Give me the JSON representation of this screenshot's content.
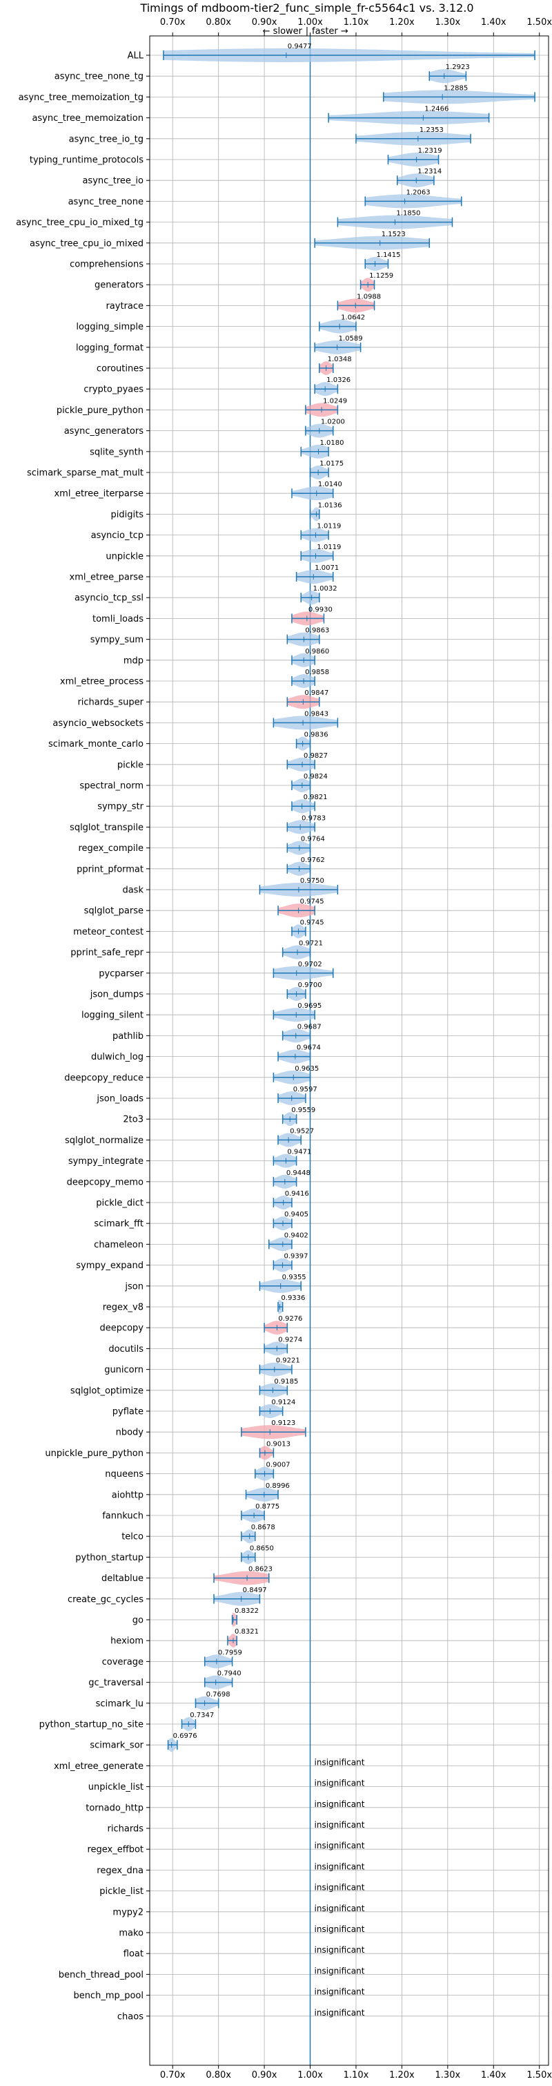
{
  "chart_data": {
    "type": "violin",
    "title": "Timings of mdboom-tier2_func_simple_fr-c5564c1 vs. 3.12.0",
    "subtitle_left": "← slower",
    "subtitle_sep": "|",
    "subtitle_right": "faster →",
    "xlim": [
      0.65,
      1.52
    ],
    "xticks": [
      0.7,
      0.8,
      0.9,
      1.0,
      1.1,
      1.2,
      1.3,
      1.4,
      1.5
    ],
    "xtick_labels": [
      "0.70x",
      "0.80x",
      "0.90x",
      "1.00x",
      "1.10x",
      "1.20x",
      "1.30x",
      "1.40x",
      "1.50x"
    ],
    "reference_x": 1.0,
    "grid": true,
    "insignificant_label": "insignificant",
    "colors": {
      "normal": "#a8c8e8",
      "highlight": "#f4a6ae",
      "line": "#1f77b4"
    },
    "rows": [
      {
        "name": "ALL",
        "value": 0.9477,
        "label": "0.9477",
        "lo": 0.68,
        "hi": 1.49,
        "spread": 0.12,
        "highlight": false
      },
      {
        "name": "async_tree_none_tg",
        "value": 1.2923,
        "label": "1.2923",
        "lo": 1.26,
        "hi": 1.34,
        "spread": 0.05,
        "highlight": false
      },
      {
        "name": "async_tree_memoization_tg",
        "value": 1.2885,
        "label": "1.2885",
        "lo": 1.16,
        "hi": 1.49,
        "spread": 0.14,
        "highlight": false
      },
      {
        "name": "async_tree_memoization",
        "value": 1.2466,
        "label": "1.2466",
        "lo": 1.04,
        "hi": 1.39,
        "spread": 0.14,
        "highlight": false
      },
      {
        "name": "async_tree_io_tg",
        "value": 1.2353,
        "label": "1.2353",
        "lo": 1.1,
        "hi": 1.35,
        "spread": 0.11,
        "highlight": false
      },
      {
        "name": "typing_runtime_protocols",
        "value": 1.2319,
        "label": "1.2319",
        "lo": 1.17,
        "hi": 1.28,
        "spread": 0.05,
        "highlight": false
      },
      {
        "name": "async_tree_io",
        "value": 1.2314,
        "label": "1.2314",
        "lo": 1.19,
        "hi": 1.27,
        "spread": 0.04,
        "highlight": false
      },
      {
        "name": "async_tree_none",
        "value": 1.2063,
        "label": "1.2063",
        "lo": 1.12,
        "hi": 1.33,
        "spread": 0.09,
        "highlight": false
      },
      {
        "name": "async_tree_cpu_io_mixed_tg",
        "value": 1.185,
        "label": "1.1850",
        "lo": 1.06,
        "hi": 1.31,
        "spread": 0.11,
        "highlight": false
      },
      {
        "name": "async_tree_cpu_io_mixed",
        "value": 1.1523,
        "label": "1.1523",
        "lo": 1.01,
        "hi": 1.26,
        "spread": 0.11,
        "highlight": false
      },
      {
        "name": "comprehensions",
        "value": 1.1415,
        "label": "1.1415",
        "lo": 1.12,
        "hi": 1.17,
        "spread": 0.025,
        "highlight": false
      },
      {
        "name": "generators",
        "value": 1.1259,
        "label": "1.1259",
        "lo": 1.11,
        "hi": 1.14,
        "spread": 0.015,
        "highlight": true
      },
      {
        "name": "raytrace",
        "value": 1.0988,
        "label": "1.0988",
        "lo": 1.06,
        "hi": 1.14,
        "spread": 0.03,
        "highlight": true
      },
      {
        "name": "logging_simple",
        "value": 1.0642,
        "label": "1.0642",
        "lo": 1.02,
        "hi": 1.1,
        "spread": 0.03,
        "highlight": false
      },
      {
        "name": "logging_format",
        "value": 1.0589,
        "label": "1.0589",
        "lo": 1.01,
        "hi": 1.11,
        "spread": 0.03,
        "highlight": false
      },
      {
        "name": "coroutines",
        "value": 1.0348,
        "label": "1.0348",
        "lo": 1.02,
        "hi": 1.05,
        "spread": 0.012,
        "highlight": true
      },
      {
        "name": "crypto_pyaes",
        "value": 1.0326,
        "label": "1.0326",
        "lo": 1.01,
        "hi": 1.06,
        "spread": 0.02,
        "highlight": false
      },
      {
        "name": "pickle_pure_python",
        "value": 1.0249,
        "label": "1.0249",
        "lo": 0.99,
        "hi": 1.06,
        "spread": 0.025,
        "highlight": true
      },
      {
        "name": "async_generators",
        "value": 1.02,
        "label": "1.0200",
        "lo": 0.99,
        "hi": 1.05,
        "spread": 0.02,
        "highlight": false
      },
      {
        "name": "sqlite_synth",
        "value": 1.018,
        "label": "1.0180",
        "lo": 0.98,
        "hi": 1.04,
        "spread": 0.015,
        "highlight": false
      },
      {
        "name": "scimark_sparse_mat_mult",
        "value": 1.0175,
        "label": "1.0175",
        "lo": 1.0,
        "hi": 1.04,
        "spread": 0.015,
        "highlight": false
      },
      {
        "name": "xml_etree_iterparse",
        "value": 1.014,
        "label": "1.0140",
        "lo": 0.96,
        "hi": 1.05,
        "spread": 0.02,
        "highlight": false
      },
      {
        "name": "pidigits",
        "value": 1.0136,
        "label": "1.0136",
        "lo": 1.0,
        "hi": 1.02,
        "spread": 0.006,
        "highlight": false
      },
      {
        "name": "asyncio_tcp",
        "value": 1.0119,
        "label": "1.0119",
        "lo": 0.98,
        "hi": 1.04,
        "spread": 0.02,
        "highlight": false
      },
      {
        "name": "unpickle",
        "value": 1.0119,
        "label": "1.0119",
        "lo": 0.98,
        "hi": 1.05,
        "spread": 0.02,
        "highlight": false
      },
      {
        "name": "xml_etree_parse",
        "value": 1.0071,
        "label": "1.0071",
        "lo": 0.97,
        "hi": 1.05,
        "spread": 0.02,
        "highlight": false
      },
      {
        "name": "asyncio_tcp_ssl",
        "value": 1.0032,
        "label": "1.0032",
        "lo": 0.98,
        "hi": 1.02,
        "spread": 0.012,
        "highlight": false
      },
      {
        "name": "tomli_loads",
        "value": 0.993,
        "label": "0.9930",
        "lo": 0.96,
        "hi": 1.03,
        "spread": 0.025,
        "highlight": true
      },
      {
        "name": "sympy_sum",
        "value": 0.9863,
        "label": "0.9863",
        "lo": 0.95,
        "hi": 1.02,
        "spread": 0.02,
        "highlight": false
      },
      {
        "name": "mdp",
        "value": 0.986,
        "label": "0.9860",
        "lo": 0.96,
        "hi": 1.01,
        "spread": 0.015,
        "highlight": false
      },
      {
        "name": "xml_etree_process",
        "value": 0.9858,
        "label": "0.9858",
        "lo": 0.96,
        "hi": 1.01,
        "spread": 0.015,
        "highlight": false
      },
      {
        "name": "richards_super",
        "value": 0.9847,
        "label": "0.9847",
        "lo": 0.95,
        "hi": 1.02,
        "spread": 0.025,
        "highlight": true
      },
      {
        "name": "asyncio_websockets",
        "value": 0.9843,
        "label": "0.9843",
        "lo": 0.92,
        "hi": 1.06,
        "spread": 0.03,
        "highlight": false
      },
      {
        "name": "scimark_monte_carlo",
        "value": 0.9836,
        "label": "0.9836",
        "lo": 0.97,
        "hi": 1.0,
        "spread": 0.01,
        "highlight": false
      },
      {
        "name": "pickle",
        "value": 0.9827,
        "label": "0.9827",
        "lo": 0.95,
        "hi": 1.01,
        "spread": 0.015,
        "highlight": false
      },
      {
        "name": "spectral_norm",
        "value": 0.9824,
        "label": "0.9824",
        "lo": 0.96,
        "hi": 1.0,
        "spread": 0.012,
        "highlight": false
      },
      {
        "name": "sympy_str",
        "value": 0.9821,
        "label": "0.9821",
        "lo": 0.96,
        "hi": 1.01,
        "spread": 0.015,
        "highlight": false
      },
      {
        "name": "sqlglot_transpile",
        "value": 0.9783,
        "label": "0.9783",
        "lo": 0.95,
        "hi": 1.01,
        "spread": 0.015,
        "highlight": false
      },
      {
        "name": "regex_compile",
        "value": 0.9764,
        "label": "0.9764",
        "lo": 0.95,
        "hi": 1.0,
        "spread": 0.015,
        "highlight": false
      },
      {
        "name": "pprint_pformat",
        "value": 0.9762,
        "label": "0.9762",
        "lo": 0.95,
        "hi": 1.0,
        "spread": 0.015,
        "highlight": false
      },
      {
        "name": "dask",
        "value": 0.975,
        "label": "0.9750",
        "lo": 0.89,
        "hi": 1.06,
        "spread": 0.04,
        "highlight": false
      },
      {
        "name": "sqlglot_parse",
        "value": 0.9745,
        "label": "0.9745",
        "lo": 0.93,
        "hi": 1.01,
        "spread": 0.03,
        "highlight": true
      },
      {
        "name": "meteor_contest",
        "value": 0.9745,
        "label": "0.9745",
        "lo": 0.96,
        "hi": 0.99,
        "spread": 0.01,
        "highlight": false
      },
      {
        "name": "pprint_safe_repr",
        "value": 0.9721,
        "label": "0.9721",
        "lo": 0.94,
        "hi": 1.0,
        "spread": 0.015,
        "highlight": false
      },
      {
        "name": "pycparser",
        "value": 0.9702,
        "label": "0.9702",
        "lo": 0.92,
        "hi": 1.05,
        "spread": 0.025,
        "highlight": false
      },
      {
        "name": "json_dumps",
        "value": 0.97,
        "label": "0.9700",
        "lo": 0.95,
        "hi": 0.99,
        "spread": 0.01,
        "highlight": false
      },
      {
        "name": "logging_silent",
        "value": 0.9695,
        "label": "0.9695",
        "lo": 0.92,
        "hi": 1.01,
        "spread": 0.02,
        "highlight": false
      },
      {
        "name": "pathlib",
        "value": 0.9687,
        "label": "0.9687",
        "lo": 0.94,
        "hi": 1.0,
        "spread": 0.02,
        "highlight": false
      },
      {
        "name": "dulwich_log",
        "value": 0.9674,
        "label": "0.9674",
        "lo": 0.93,
        "hi": 1.0,
        "spread": 0.02,
        "highlight": false
      },
      {
        "name": "deepcopy_reduce",
        "value": 0.9635,
        "label": "0.9635",
        "lo": 0.92,
        "hi": 1.0,
        "spread": 0.02,
        "highlight": false
      },
      {
        "name": "json_loads",
        "value": 0.9597,
        "label": "0.9597",
        "lo": 0.93,
        "hi": 0.99,
        "spread": 0.015,
        "highlight": false
      },
      {
        "name": "2to3",
        "value": 0.9559,
        "label": "0.9559",
        "lo": 0.94,
        "hi": 0.97,
        "spread": 0.008,
        "highlight": false
      },
      {
        "name": "sqlglot_normalize",
        "value": 0.9527,
        "label": "0.9527",
        "lo": 0.93,
        "hi": 0.98,
        "spread": 0.015,
        "highlight": false
      },
      {
        "name": "sympy_integrate",
        "value": 0.9471,
        "label": "0.9471",
        "lo": 0.92,
        "hi": 0.97,
        "spread": 0.015,
        "highlight": false
      },
      {
        "name": "deepcopy_memo",
        "value": 0.9448,
        "label": "0.9448",
        "lo": 0.92,
        "hi": 0.97,
        "spread": 0.015,
        "highlight": false
      },
      {
        "name": "pickle_dict",
        "value": 0.9416,
        "label": "0.9416",
        "lo": 0.92,
        "hi": 0.96,
        "spread": 0.012,
        "highlight": false
      },
      {
        "name": "scimark_fft",
        "value": 0.9405,
        "label": "0.9405",
        "lo": 0.92,
        "hi": 0.96,
        "spread": 0.012,
        "highlight": false
      },
      {
        "name": "chameleon",
        "value": 0.9402,
        "label": "0.9402",
        "lo": 0.91,
        "hi": 0.96,
        "spread": 0.012,
        "highlight": false
      },
      {
        "name": "sympy_expand",
        "value": 0.9397,
        "label": "0.9397",
        "lo": 0.92,
        "hi": 0.96,
        "spread": 0.012,
        "highlight": false
      },
      {
        "name": "json",
        "value": 0.9355,
        "label": "0.9355",
        "lo": 0.89,
        "hi": 0.98,
        "spread": 0.025,
        "highlight": false
      },
      {
        "name": "regex_v8",
        "value": 0.9336,
        "label": "0.9336",
        "lo": 0.93,
        "hi": 0.94,
        "spread": 0.006,
        "highlight": false
      },
      {
        "name": "deepcopy",
        "value": 0.9276,
        "label": "0.9276",
        "lo": 0.9,
        "hi": 0.95,
        "spread": 0.02,
        "highlight": true
      },
      {
        "name": "docutils",
        "value": 0.9274,
        "label": "0.9274",
        "lo": 0.9,
        "hi": 0.95,
        "spread": 0.015,
        "highlight": false
      },
      {
        "name": "gunicorn",
        "value": 0.9221,
        "label": "0.9221",
        "lo": 0.89,
        "hi": 0.96,
        "spread": 0.015,
        "highlight": false
      },
      {
        "name": "sqlglot_optimize",
        "value": 0.9185,
        "label": "0.9185",
        "lo": 0.89,
        "hi": 0.95,
        "spread": 0.015,
        "highlight": false
      },
      {
        "name": "pyflate",
        "value": 0.9124,
        "label": "0.9124",
        "lo": 0.89,
        "hi": 0.94,
        "spread": 0.012,
        "highlight": false
      },
      {
        "name": "nbody",
        "value": 0.9123,
        "label": "0.9123",
        "lo": 0.85,
        "hi": 0.99,
        "spread": 0.04,
        "highlight": true
      },
      {
        "name": "unpickle_pure_python",
        "value": 0.9013,
        "label": "0.9013",
        "lo": 0.89,
        "hi": 0.92,
        "spread": 0.01,
        "highlight": true
      },
      {
        "name": "nqueens",
        "value": 0.9007,
        "label": "0.9007",
        "lo": 0.88,
        "hi": 0.92,
        "spread": 0.012,
        "highlight": false
      },
      {
        "name": "aiohttp",
        "value": 0.8996,
        "label": "0.8996",
        "lo": 0.86,
        "hi": 0.93,
        "spread": 0.015,
        "highlight": false
      },
      {
        "name": "fannkuch",
        "value": 0.8775,
        "label": "0.8775",
        "lo": 0.85,
        "hi": 0.9,
        "spread": 0.015,
        "highlight": false
      },
      {
        "name": "telco",
        "value": 0.8678,
        "label": "0.8678",
        "lo": 0.85,
        "hi": 0.88,
        "spread": 0.01,
        "highlight": false
      },
      {
        "name": "python_startup",
        "value": 0.865,
        "label": "0.8650",
        "lo": 0.85,
        "hi": 0.88,
        "spread": 0.01,
        "highlight": false
      },
      {
        "name": "deltablue",
        "value": 0.8623,
        "label": "0.8623",
        "lo": 0.79,
        "hi": 0.91,
        "spread": 0.035,
        "highlight": true
      },
      {
        "name": "create_gc_cycles",
        "value": 0.8497,
        "label": "0.8497",
        "lo": 0.79,
        "hi": 0.89,
        "spread": 0.02,
        "highlight": false
      },
      {
        "name": "go",
        "value": 0.8322,
        "label": "0.8322",
        "lo": 0.83,
        "hi": 0.84,
        "spread": 0.008,
        "highlight": true
      },
      {
        "name": "hexiom",
        "value": 0.8321,
        "label": "0.8321",
        "lo": 0.82,
        "hi": 0.84,
        "spread": 0.008,
        "highlight": true
      },
      {
        "name": "coverage",
        "value": 0.7959,
        "label": "0.7959",
        "lo": 0.77,
        "hi": 0.83,
        "spread": 0.015,
        "highlight": false
      },
      {
        "name": "gc_traversal",
        "value": 0.794,
        "label": "0.7940",
        "lo": 0.77,
        "hi": 0.83,
        "spread": 0.015,
        "highlight": false
      },
      {
        "name": "scimark_lu",
        "value": 0.7698,
        "label": "0.7698",
        "lo": 0.75,
        "hi": 0.8,
        "spread": 0.015,
        "highlight": false
      },
      {
        "name": "python_startup_no_site",
        "value": 0.7347,
        "label": "0.7347",
        "lo": 0.72,
        "hi": 0.75,
        "spread": 0.008,
        "highlight": false
      },
      {
        "name": "scimark_sor",
        "value": 0.6976,
        "label": "0.6976",
        "lo": 0.69,
        "hi": 0.71,
        "spread": 0.008,
        "highlight": false
      },
      {
        "name": "xml_etree_generate",
        "insignificant": true
      },
      {
        "name": "unpickle_list",
        "insignificant": true
      },
      {
        "name": "tornado_http",
        "insignificant": true
      },
      {
        "name": "richards",
        "insignificant": true
      },
      {
        "name": "regex_effbot",
        "insignificant": true
      },
      {
        "name": "regex_dna",
        "insignificant": true
      },
      {
        "name": "pickle_list",
        "insignificant": true
      },
      {
        "name": "mypy2",
        "insignificant": true
      },
      {
        "name": "mako",
        "insignificant": true
      },
      {
        "name": "float",
        "insignificant": true
      },
      {
        "name": "bench_thread_pool",
        "insignificant": true
      },
      {
        "name": "bench_mp_pool",
        "insignificant": true
      },
      {
        "name": "chaos",
        "insignificant": true
      }
    ]
  }
}
